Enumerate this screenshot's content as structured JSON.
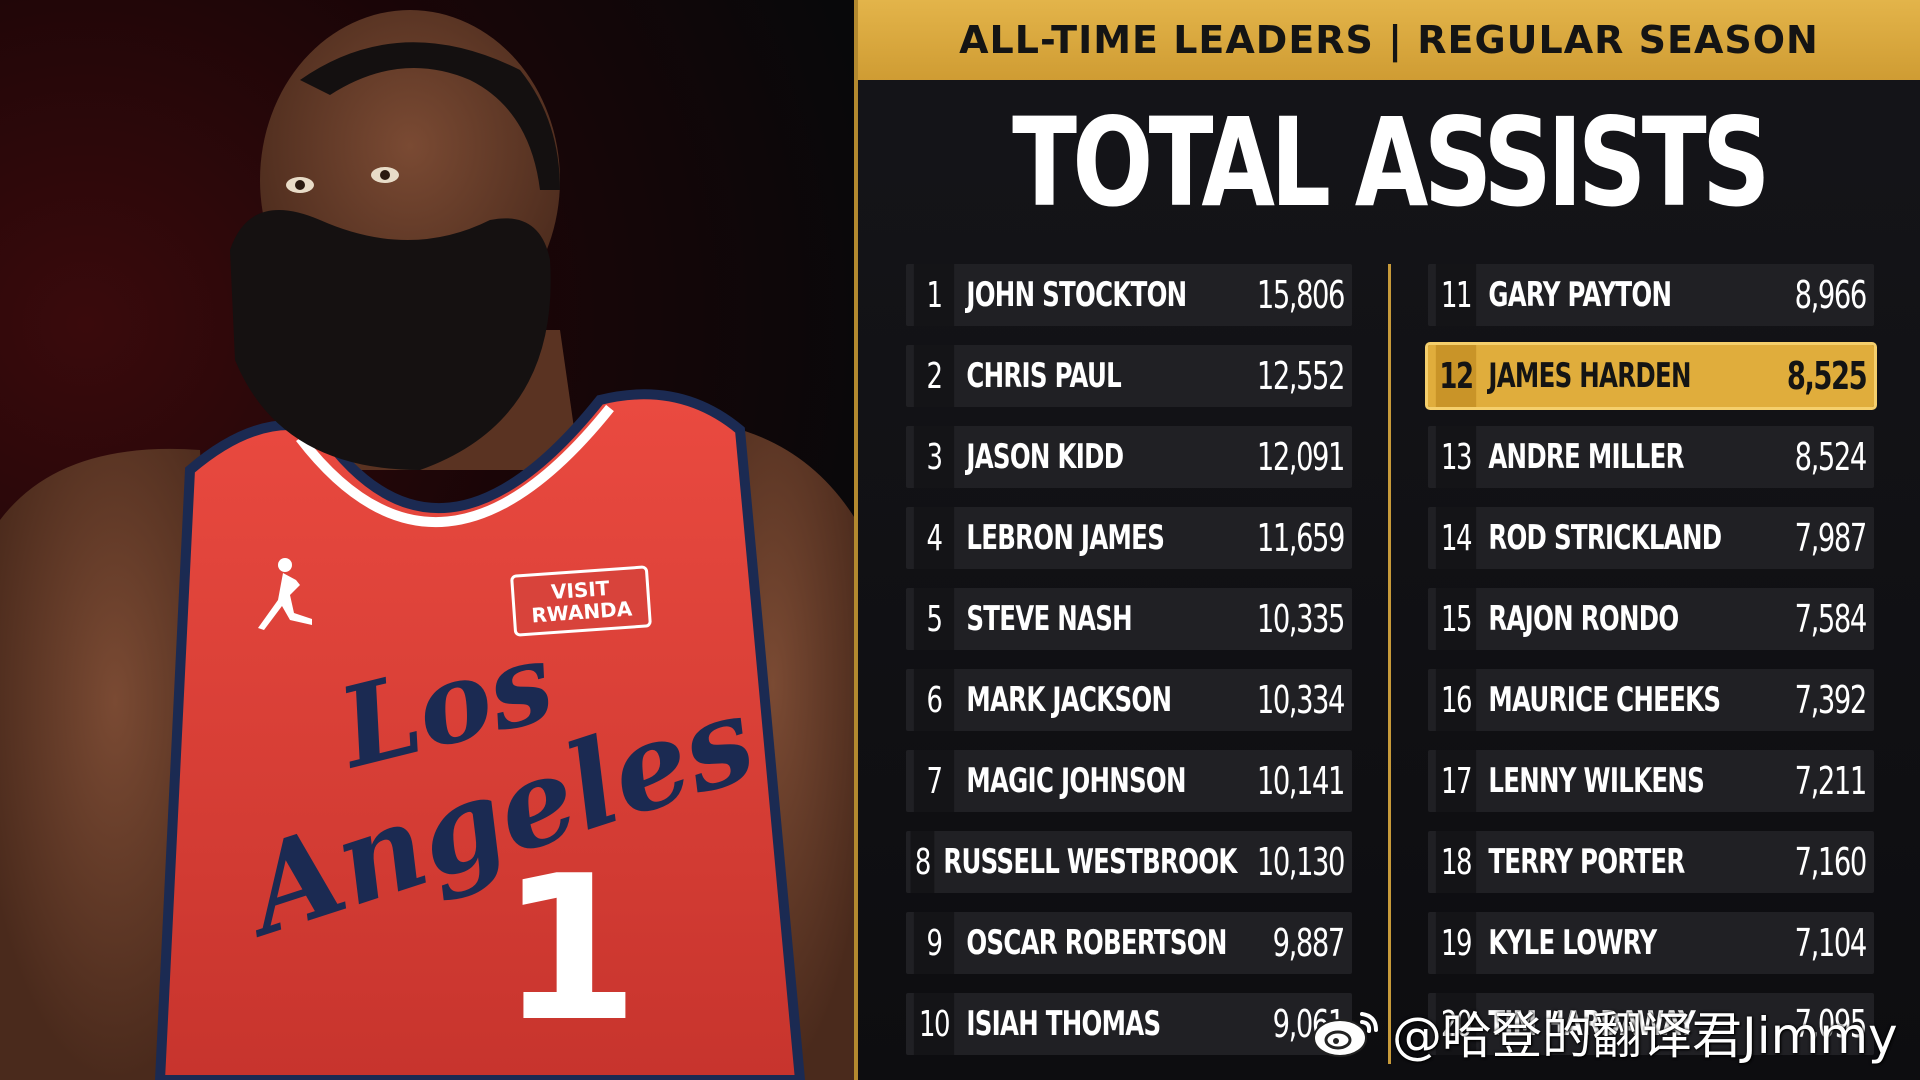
{
  "header": {
    "banner": "ALL-TIME LEADERS | REGULAR SEASON",
    "title": "TOTAL ASSISTS"
  },
  "photo": {
    "jersey_sponsor": "VISIT RWANDA",
    "jersey_wordmark_line1": "Los",
    "jersey_wordmark_line2": "Angeles",
    "jersey_number": "1"
  },
  "leaders_left": [
    {
      "rank": "1",
      "name": "JOHN STOCKTON",
      "value": "15,806"
    },
    {
      "rank": "2",
      "name": "CHRIS PAUL",
      "value": "12,552"
    },
    {
      "rank": "3",
      "name": "JASON KIDD",
      "value": "12,091"
    },
    {
      "rank": "4",
      "name": "LEBRON JAMES",
      "value": "11,659"
    },
    {
      "rank": "5",
      "name": "STEVE NASH",
      "value": "10,335"
    },
    {
      "rank": "6",
      "name": "MARK JACKSON",
      "value": "10,334"
    },
    {
      "rank": "7",
      "name": "MAGIC JOHNSON",
      "value": "10,141"
    },
    {
      "rank": "8",
      "name": "RUSSELL WESTBROOK",
      "value": "10,130"
    },
    {
      "rank": "9",
      "name": "OSCAR ROBERTSON",
      "value": "9,887"
    },
    {
      "rank": "10",
      "name": "ISIAH THOMAS",
      "value": "9,061"
    }
  ],
  "leaders_right": [
    {
      "rank": "11",
      "name": "GARY PAYTON",
      "value": "8,966"
    },
    {
      "rank": "12",
      "name": "JAMES HARDEN",
      "value": "8,525"
    },
    {
      "rank": "13",
      "name": "ANDRE MILLER",
      "value": "8,524"
    },
    {
      "rank": "14",
      "name": "ROD STRICKLAND",
      "value": "7,987"
    },
    {
      "rank": "15",
      "name": "RAJON RONDO",
      "value": "7,584"
    },
    {
      "rank": "16",
      "name": "MAURICE CHEEKS",
      "value": "7,392"
    },
    {
      "rank": "17",
      "name": "LENNY WILKENS",
      "value": "7,211"
    },
    {
      "rank": "18",
      "name": "TERRY PORTER",
      "value": "7,160"
    },
    {
      "rank": "19",
      "name": "KYLE LOWRY",
      "value": "7,104"
    },
    {
      "rank": "20",
      "name": "TIM HARDAWAY",
      "value": "7,095"
    }
  ],
  "highlight_rank": "12",
  "watermark": {
    "icon": "weibo-logo-icon",
    "text": "@哈登的翻译君Jimmy"
  },
  "colors": {
    "gold": "#d9a83c",
    "row_bg": "#202024",
    "panel_bg": "#111114",
    "jersey_red": "#e2413a",
    "jersey_navy": "#1b2a52"
  }
}
